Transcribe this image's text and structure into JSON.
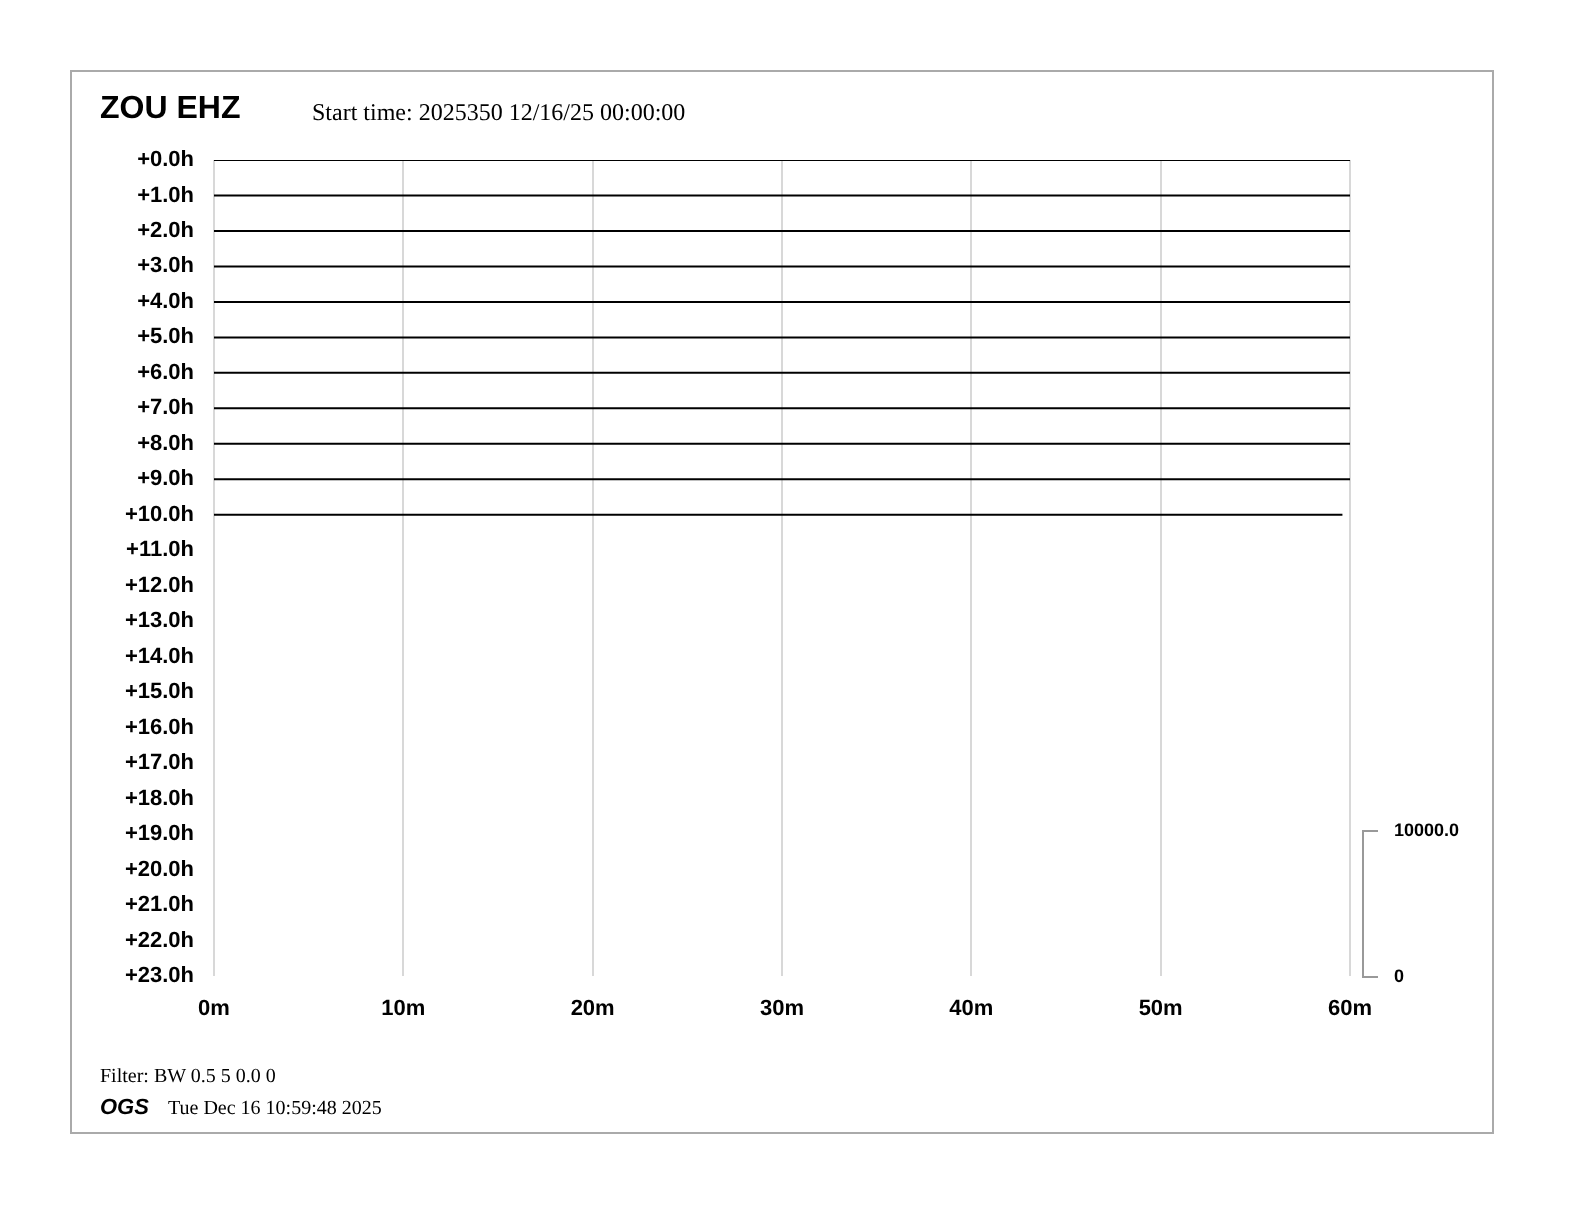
{
  "chart_data": {
    "type": "line",
    "title": "ZOU EHZ",
    "subtitle": "Start time: 2025350 12/16/25 00:00:00",
    "annotations": [
      "10000.0",
      "0",
      "Filter: BW 0.5 5 0.0 0",
      "OGS",
      "Tue Dec 16 10:59:48 2025"
    ],
    "xlim": [
      0,
      60
    ],
    "xticks": [
      {
        "value": 0,
        "label": "0m"
      },
      {
        "value": 10,
        "label": "10m"
      },
      {
        "value": 20,
        "label": "20m"
      },
      {
        "value": 30,
        "label": "30m"
      },
      {
        "value": 40,
        "label": "40m"
      },
      {
        "value": 50,
        "label": "50m"
      },
      {
        "value": 60,
        "label": "60m"
      }
    ],
    "ylim": [
      23,
      0
    ],
    "yticks": [
      {
        "value": 0,
        "label": "+0.0h"
      },
      {
        "value": 1,
        "label": "+1.0h"
      },
      {
        "value": 2,
        "label": "+2.0h"
      },
      {
        "value": 3,
        "label": "+3.0h"
      },
      {
        "value": 4,
        "label": "+4.0h"
      },
      {
        "value": 5,
        "label": "+5.0h"
      },
      {
        "value": 6,
        "label": "+6.0h"
      },
      {
        "value": 7,
        "label": "+7.0h"
      },
      {
        "value": 8,
        "label": "+8.0h"
      },
      {
        "value": 9,
        "label": "+9.0h"
      },
      {
        "value": 10,
        "label": "+10.0h"
      },
      {
        "value": 11,
        "label": "+11.0h"
      },
      {
        "value": 12,
        "label": "+12.0h"
      },
      {
        "value": 13,
        "label": "+13.0h"
      },
      {
        "value": 14,
        "label": "+14.0h"
      },
      {
        "value": 15,
        "label": "+15.0h"
      },
      {
        "value": 16,
        "label": "+16.0h"
      },
      {
        "value": 17,
        "label": "+17.0h"
      },
      {
        "value": 18,
        "label": "+18.0h"
      },
      {
        "value": 19,
        "label": "+19.0h"
      },
      {
        "value": 20,
        "label": "+20.0h"
      },
      {
        "value": 21,
        "label": "+21.0h"
      },
      {
        "value": 22,
        "label": "+22.0h"
      },
      {
        "value": 23,
        "label": "+23.0h"
      }
    ],
    "grid": "x",
    "legend": false,
    "marker": "none",
    "line_style": "solid",
    "series": [
      {
        "color": "#000000",
        "x": [
          0,
          60
        ],
        "values": [
          0,
          0
        ]
      },
      {
        "color": "#000000",
        "x": [
          0,
          60
        ],
        "values": [
          1,
          1
        ]
      },
      {
        "color": "#000000",
        "x": [
          0,
          60
        ],
        "values": [
          2,
          2
        ]
      },
      {
        "color": "#000000",
        "x": [
          0,
          60
        ],
        "values": [
          3,
          3
        ]
      },
      {
        "color": "#000000",
        "x": [
          0,
          60
        ],
        "values": [
          4,
          4
        ]
      },
      {
        "color": "#000000",
        "x": [
          0,
          60
        ],
        "values": [
          5,
          5
        ]
      },
      {
        "color": "#000000",
        "x": [
          0,
          60
        ],
        "values": [
          6,
          6
        ]
      },
      {
        "color": "#000000",
        "x": [
          0,
          60
        ],
        "values": [
          7,
          7
        ]
      },
      {
        "color": "#000000",
        "x": [
          0,
          60
        ],
        "values": [
          8,
          8
        ]
      },
      {
        "color": "#000000",
        "x": [
          0,
          60
        ],
        "values": [
          9,
          9
        ]
      },
      {
        "color": "#000000",
        "x": [
          0,
          59.6
        ],
        "values": [
          10,
          10
        ]
      }
    ]
  }
}
